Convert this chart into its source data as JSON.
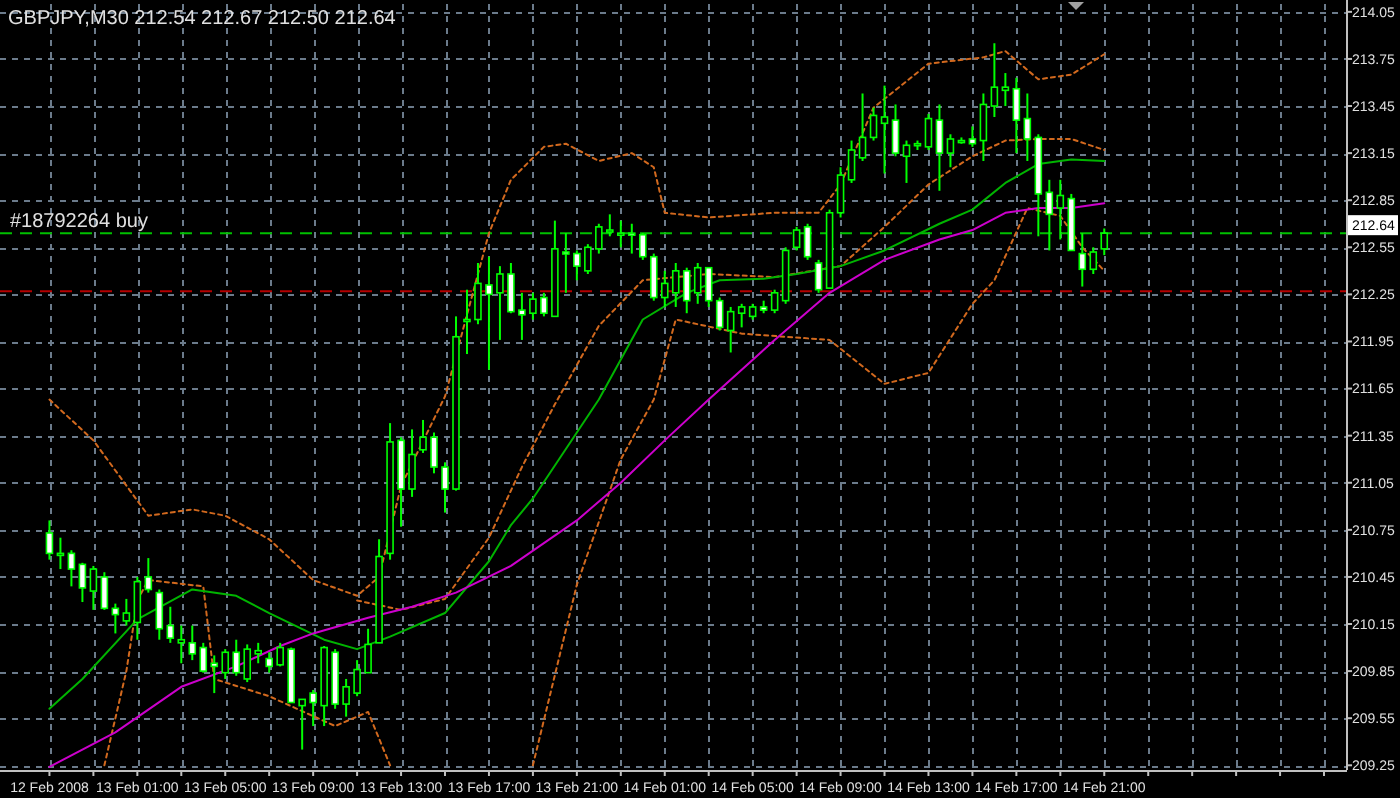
{
  "chart_data": {
    "type": "candlestick",
    "title": "GBPJPY,M30  212.54 212.67 212.50 212.64",
    "x": [
      "2008-02-12T21:00",
      "2008-02-12T21:30",
      "2008-02-12T22:00",
      "2008-02-12T22:30",
      "2008-02-12T23:00",
      "2008-02-12T23:30",
      "2008-02-13T00:00",
      "2008-02-13T00:30",
      "2008-02-13T01:00",
      "2008-02-13T01:30",
      "2008-02-13T02:00",
      "2008-02-13T02:30",
      "2008-02-13T03:00",
      "2008-02-13T03:30",
      "2008-02-13T04:00",
      "2008-02-13T04:30",
      "2008-02-13T05:00",
      "2008-02-13T05:30",
      "2008-02-13T06:00",
      "2008-02-13T06:30",
      "2008-02-13T07:00",
      "2008-02-13T07:30",
      "2008-02-13T08:00",
      "2008-02-13T08:30",
      "2008-02-13T09:00",
      "2008-02-13T09:30",
      "2008-02-13T10:00",
      "2008-02-13T10:30",
      "2008-02-13T11:00",
      "2008-02-13T11:30",
      "2008-02-13T12:00",
      "2008-02-13T12:30",
      "2008-02-13T13:00",
      "2008-02-13T13:30",
      "2008-02-13T14:00",
      "2008-02-13T14:30",
      "2008-02-13T15:00",
      "2008-02-13T15:30",
      "2008-02-13T16:00",
      "2008-02-13T16:30",
      "2008-02-13T17:00",
      "2008-02-13T17:30",
      "2008-02-13T18:00",
      "2008-02-13T18:30",
      "2008-02-13T19:00",
      "2008-02-13T19:30",
      "2008-02-13T20:00",
      "2008-02-13T20:30",
      "2008-02-13T21:00",
      "2008-02-13T21:30",
      "2008-02-13T22:00",
      "2008-02-13T22:30",
      "2008-02-13T23:00",
      "2008-02-13T23:30",
      "2008-02-14T00:00",
      "2008-02-14T00:30",
      "2008-02-14T01:00",
      "2008-02-14T01:30",
      "2008-02-14T02:00",
      "2008-02-14T02:30",
      "2008-02-14T03:00",
      "2008-02-14T03:30",
      "2008-02-14T04:00",
      "2008-02-14T04:30",
      "2008-02-14T05:00",
      "2008-02-14T05:30",
      "2008-02-14T06:00",
      "2008-02-14T06:30",
      "2008-02-14T07:00",
      "2008-02-14T07:30",
      "2008-02-14T08:00",
      "2008-02-14T08:30",
      "2008-02-14T09:00",
      "2008-02-14T09:30",
      "2008-02-14T10:00",
      "2008-02-14T10:30",
      "2008-02-14T11:00",
      "2008-02-14T11:30",
      "2008-02-14T12:00",
      "2008-02-14T12:30",
      "2008-02-14T13:00",
      "2008-02-14T13:30",
      "2008-02-14T14:00",
      "2008-02-14T14:30",
      "2008-02-14T15:00",
      "2008-02-14T15:30",
      "2008-02-14T16:00",
      "2008-02-14T16:30",
      "2008-02-14T17:00",
      "2008-02-14T17:30",
      "2008-02-14T18:00",
      "2008-02-14T18:30",
      "2008-02-14T19:00",
      "2008-02-14T19:30",
      "2008-02-14T20:00",
      "2008-02-14T20:30",
      "2008-02-14T21:00"
    ],
    "ohlc": [
      [
        210.73,
        210.81,
        210.56,
        210.6
      ],
      [
        210.6,
        210.7,
        210.5,
        210.6
      ],
      [
        210.6,
        210.62,
        210.39,
        210.5
      ],
      [
        210.53,
        210.54,
        210.29,
        210.38
      ],
      [
        210.36,
        210.52,
        210.24,
        210.5
      ],
      [
        210.45,
        210.48,
        210.24,
        210.25
      ],
      [
        210.25,
        210.28,
        210.09,
        210.21
      ],
      [
        210.17,
        210.31,
        210.14,
        210.22
      ],
      [
        210.16,
        210.45,
        210.05,
        210.42
      ],
      [
        210.45,
        210.57,
        210.35,
        210.37
      ],
      [
        210.35,
        210.37,
        210.05,
        210.12
      ],
      [
        210.14,
        210.26,
        210.03,
        210.06
      ],
      [
        210.03,
        210.14,
        209.9,
        210.05
      ],
      [
        210.03,
        210.14,
        209.92,
        209.96
      ],
      [
        210.0,
        210.03,
        209.84,
        209.85
      ],
      [
        209.9,
        209.95,
        209.71,
        209.88
      ],
      [
        209.84,
        209.99,
        209.8,
        209.97
      ],
      [
        209.97,
        210.05,
        209.82,
        209.84
      ],
      [
        209.8,
        210.02,
        209.78,
        209.99
      ],
      [
        209.96,
        210.03,
        209.9,
        209.98
      ],
      [
        209.93,
        209.97,
        209.84,
        209.88
      ],
      [
        209.89,
        210.03,
        209.88,
        210.0
      ],
      [
        209.99,
        210.0,
        209.65,
        209.65
      ],
      [
        209.63,
        209.67,
        209.35,
        209.67
      ],
      [
        209.71,
        209.73,
        209.5,
        209.65
      ],
      [
        209.63,
        210.01,
        209.5,
        210.0
      ],
      [
        209.97,
        209.99,
        209.61,
        209.64
      ],
      [
        209.64,
        209.8,
        209.56,
        209.75
      ],
      [
        209.71,
        209.92,
        209.69,
        209.86
      ],
      [
        209.84,
        210.12,
        209.84,
        210.02
      ],
      [
        210.03,
        210.69,
        210.03,
        210.58
      ],
      [
        210.6,
        211.43,
        210.56,
        211.31
      ],
      [
        211.32,
        211.34,
        210.77,
        211.01
      ],
      [
        211.01,
        211.39,
        210.96,
        211.23
      ],
      [
        211.26,
        211.45,
        211.24,
        211.34
      ],
      [
        211.34,
        211.37,
        211.11,
        211.15
      ],
      [
        211.15,
        211.18,
        210.86,
        211.01
      ],
      [
        211.01,
        212.11,
        211.0,
        211.98
      ],
      [
        212.08,
        212.28,
        211.87,
        212.09
      ],
      [
        212.09,
        212.45,
        212.06,
        212.32
      ],
      [
        212.31,
        212.49,
        211.77,
        212.25
      ],
      [
        212.26,
        212.43,
        211.96,
        212.38
      ],
      [
        212.38,
        212.45,
        212.13,
        212.14
      ],
      [
        212.15,
        212.26,
        211.96,
        212.12
      ],
      [
        212.13,
        212.26,
        212.09,
        212.22
      ],
      [
        212.23,
        212.26,
        212.11,
        212.13
      ],
      [
        212.11,
        212.72,
        212.11,
        212.54
      ],
      [
        212.52,
        212.64,
        212.26,
        212.51
      ],
      [
        212.51,
        212.53,
        212.34,
        212.43
      ],
      [
        212.4,
        212.57,
        212.38,
        212.55
      ],
      [
        212.54,
        212.7,
        212.51,
        212.68
      ],
      [
        212.66,
        212.76,
        212.62,
        212.66
      ],
      [
        212.64,
        212.72,
        212.55,
        212.64
      ],
      [
        212.64,
        212.7,
        212.51,
        212.63
      ],
      [
        212.63,
        212.64,
        212.47,
        212.49
      ],
      [
        212.49,
        212.51,
        212.21,
        212.23
      ],
      [
        212.23,
        212.4,
        212.17,
        212.32
      ],
      [
        212.26,
        212.45,
        212.17,
        212.4
      ],
      [
        212.4,
        212.42,
        212.13,
        212.21
      ],
      [
        212.26,
        212.45,
        212.19,
        212.42
      ],
      [
        212.42,
        212.42,
        212.17,
        212.21
      ],
      [
        212.21,
        212.23,
        212.02,
        212.04
      ],
      [
        212.02,
        212.17,
        211.88,
        212.14
      ],
      [
        212.13,
        212.19,
        212.04,
        212.17
      ],
      [
        212.11,
        212.19,
        212.09,
        212.17
      ],
      [
        212.17,
        212.21,
        212.13,
        212.15
      ],
      [
        212.15,
        212.28,
        212.13,
        212.26
      ],
      [
        212.21,
        212.55,
        212.19,
        212.53
      ],
      [
        212.55,
        212.68,
        212.53,
        212.66
      ],
      [
        212.68,
        212.7,
        212.47,
        212.49
      ],
      [
        212.45,
        212.47,
        212.26,
        212.28
      ],
      [
        212.29,
        212.79,
        212.29,
        212.77
      ],
      [
        212.77,
        213.06,
        212.74,
        213.01
      ],
      [
        212.98,
        213.23,
        212.96,
        213.17
      ],
      [
        213.12,
        213.53,
        213.1,
        213.25
      ],
      [
        213.25,
        213.44,
        213.23,
        213.39
      ],
      [
        213.34,
        213.58,
        213.02,
        213.38
      ],
      [
        213.36,
        213.46,
        213.13,
        213.15
      ],
      [
        213.13,
        213.23,
        212.96,
        213.2
      ],
      [
        213.2,
        213.23,
        213.17,
        213.21
      ],
      [
        213.19,
        213.4,
        213.17,
        213.37
      ],
      [
        213.36,
        213.46,
        212.91,
        213.15
      ],
      [
        213.15,
        213.27,
        213.06,
        213.24
      ],
      [
        213.23,
        213.25,
        213.21,
        213.23
      ],
      [
        213.24,
        213.32,
        213.19,
        213.21
      ],
      [
        213.23,
        213.53,
        213.1,
        213.46
      ],
      [
        213.45,
        213.85,
        213.38,
        213.57
      ],
      [
        213.55,
        213.66,
        213.45,
        213.57
      ],
      [
        213.56,
        213.63,
        213.15,
        213.36
      ],
      [
        213.37,
        213.53,
        213.1,
        213.24
      ],
      [
        213.25,
        213.27,
        212.62,
        212.89
      ],
      [
        212.9,
        212.98,
        212.53,
        212.76
      ],
      [
        212.8,
        212.98,
        212.6,
        212.88
      ],
      [
        212.86,
        212.89,
        212.53,
        212.53
      ],
      [
        212.51,
        212.64,
        212.3,
        212.41
      ],
      [
        212.41,
        212.55,
        212.38,
        212.52
      ],
      [
        212.54,
        212.67,
        212.5,
        212.64
      ]
    ],
    "series": [
      {
        "type": "line",
        "color": "#d2691e",
        "line_style": "dotted",
        "x": [
          "2008-02-12T21:00",
          "2008-02-12T23:00",
          "2008-02-13T01:30",
          "2008-02-13T03:30",
          "2008-02-13T05:00",
          "2008-02-13T07:00",
          "2008-02-13T09:00",
          "2008-02-13T11:00",
          "2008-02-13T12:00",
          "2008-02-13T13:00",
          "2008-02-13T15:00",
          "2008-02-13T17:00",
          "2008-02-13T18:00",
          "2008-02-13T19:30",
          "2008-02-13T20:30",
          "2008-02-13T22:00",
          "2008-02-13T23:30",
          "2008-02-14T00:30",
          "2008-02-14T01:00",
          "2008-02-14T03:00",
          "2008-02-14T06:00",
          "2008-02-14T08:00",
          "2008-02-14T09:00",
          "2008-02-14T10:30",
          "2008-02-14T13:00",
          "2008-02-14T15:30",
          "2008-02-14T16:30",
          "2008-02-14T18:00",
          "2008-02-14T19:30",
          "2008-02-14T21:00"
        ],
        "values": [
          211.58,
          211.32,
          210.84,
          210.88,
          210.84,
          210.69,
          210.43,
          210.33,
          210.45,
          211.03,
          211.6,
          212.64,
          212.98,
          213.19,
          213.21,
          213.1,
          213.15,
          213.06,
          212.77,
          212.74,
          212.77,
          212.77,
          212.95,
          213.44,
          213.72,
          213.76,
          213.8,
          213.62,
          213.65,
          213.78
        ]
      },
      {
        "type": "line",
        "color": "#d2691e",
        "line_style": "dotted",
        "x": [
          "2008-02-13T11:00",
          "2008-02-13T13:00",
          "2008-02-13T15:00",
          "2008-02-13T17:00",
          "2008-02-13T18:30",
          "2008-02-13T20:00",
          "2008-02-13T22:00",
          "2008-02-14T00:00",
          "2008-02-14T03:00",
          "2008-02-14T06:00",
          "2008-02-14T09:00",
          "2008-02-14T11:00",
          "2008-02-14T13:00",
          "2008-02-14T15:00",
          "2008-02-14T16:30",
          "2008-02-14T18:00",
          "2008-02-14T19:30",
          "2008-02-14T21:00"
        ],
        "values": [
          210.3,
          210.24,
          210.31,
          210.7,
          211.15,
          211.55,
          212.05,
          212.34,
          212.38,
          212.36,
          212.43,
          212.68,
          212.95,
          213.13,
          213.23,
          213.24,
          213.24,
          213.17
        ]
      },
      {
        "type": "line",
        "color": "#d2691e",
        "line_style": "dotted",
        "x": [
          "2008-02-12T23:30",
          "2008-02-13T00:30",
          "2008-02-13T01:00",
          "2008-02-13T01:30",
          "2008-02-13T04:00",
          "2008-02-13T04:30",
          "2008-02-13T07:00",
          "2008-02-13T10:00",
          "2008-02-13T11:30",
          "2008-02-13T12:30",
          "2008-02-13T16:00",
          "2008-02-13T19:00",
          "2008-02-13T21:00",
          "2008-02-13T23:00",
          "2008-02-14T00:30",
          "2008-02-14T01:30",
          "2008-02-14T04:30",
          "2008-02-14T08:30",
          "2008-02-14T11:00",
          "2008-02-14T13:00",
          "2008-02-14T15:00",
          "2008-02-14T16:00",
          "2008-02-14T17:30",
          "2008-02-14T19:00",
          "2008-02-14T20:00",
          "2008-02-14T21:00"
        ],
        "values": [
          209.25,
          209.85,
          210.3,
          210.43,
          210.39,
          209.8,
          209.69,
          209.5,
          209.59,
          209.25,
          null,
          209.25,
          210.4,
          211.2,
          211.58,
          212.09,
          212.0,
          211.96,
          211.68,
          211.75,
          212.19,
          212.34,
          212.8,
          212.75,
          212.55,
          212.4
        ]
      },
      {
        "type": "line",
        "color": "#00b400",
        "line_style": "solid",
        "x": [
          "2008-02-12T21:00",
          "2008-02-12T22:30",
          "2008-02-13T01:00",
          "2008-02-13T03:30",
          "2008-02-13T05:30",
          "2008-02-13T07:00",
          "2008-02-13T09:30",
          "2008-02-13T11:00",
          "2008-02-13T12:30",
          "2008-02-13T15:00",
          "2008-02-13T17:00",
          "2008-02-13T18:00",
          "2008-02-13T19:00",
          "2008-02-13T21:00",
          "2008-02-13T22:00",
          "2008-02-14T00:00",
          "2008-02-14T02:00",
          "2008-02-14T03:30",
          "2008-02-14T05:30",
          "2008-02-14T07:00",
          "2008-02-14T09:00",
          "2008-02-14T11:00",
          "2008-02-14T13:30",
          "2008-02-14T15:00",
          "2008-02-14T16:30",
          "2008-02-14T18:00",
          "2008-02-14T19:30",
          "2008-02-14T21:00"
        ],
        "values": [
          209.61,
          209.8,
          210.18,
          210.37,
          210.33,
          210.22,
          210.05,
          209.99,
          210.07,
          210.22,
          210.55,
          210.78,
          210.95,
          211.37,
          211.58,
          212.09,
          212.26,
          212.34,
          212.35,
          212.38,
          212.43,
          212.53,
          212.7,
          212.79,
          212.96,
          213.08,
          213.11,
          213.1
        ]
      },
      {
        "type": "line",
        "color": "#cc00cc",
        "line_style": "solid",
        "x": [
          "2008-02-12T21:00",
          "2008-02-13T00:00",
          "2008-02-13T03:00",
          "2008-02-13T05:30",
          "2008-02-13T07:30",
          "2008-02-13T09:00",
          "2008-02-13T11:30",
          "2008-02-13T13:30",
          "2008-02-13T15:30",
          "2008-02-13T18:00",
          "2008-02-13T21:00",
          "2008-02-13T23:00",
          "2008-02-14T01:00",
          "2008-02-14T03:00",
          "2008-02-14T06:00",
          "2008-02-14T08:30",
          "2008-02-14T11:00",
          "2008-02-14T13:30",
          "2008-02-14T15:00",
          "2008-02-14T16:30",
          "2008-02-14T18:00",
          "2008-02-14T19:30",
          "2008-02-14T21:00"
        ],
        "values": [
          209.24,
          209.46,
          209.75,
          209.88,
          210.01,
          210.09,
          210.19,
          210.26,
          210.35,
          210.52,
          210.81,
          211.05,
          211.32,
          211.58,
          211.96,
          212.26,
          212.47,
          212.6,
          212.66,
          212.77,
          212.8,
          212.8,
          212.83
        ]
      }
    ],
    "xlim": [
      "2008-02-12T18:45",
      "2008-02-15T08:00"
    ],
    "xticks": [
      {
        "value": "2008-02-12T21:00",
        "label": "12 Feb 2008"
      },
      {
        "value": "2008-02-12T23:00",
        "label": null
      },
      {
        "value": "2008-02-13T01:00",
        "label": "13 Feb 01:00"
      },
      {
        "value": "2008-02-13T03:00",
        "label": null
      },
      {
        "value": "2008-02-13T05:00",
        "label": "13 Feb 05:00"
      },
      {
        "value": "2008-02-13T07:00",
        "label": null
      },
      {
        "value": "2008-02-13T09:00",
        "label": "13 Feb 09:00"
      },
      {
        "value": "2008-02-13T11:00",
        "label": null
      },
      {
        "value": "2008-02-13T13:00",
        "label": "13 Feb 13:00"
      },
      {
        "value": "2008-02-13T15:00",
        "label": null
      },
      {
        "value": "2008-02-13T17:00",
        "label": "13 Feb 17:00"
      },
      {
        "value": "2008-02-13T19:00",
        "label": null
      },
      {
        "value": "2008-02-13T21:00",
        "label": "13 Feb 21:00"
      },
      {
        "value": "2008-02-13T23:00",
        "label": null
      },
      {
        "value": "2008-02-14T01:00",
        "label": "14 Feb 01:00"
      },
      {
        "value": "2008-02-14T03:00",
        "label": null
      },
      {
        "value": "2008-02-14T05:00",
        "label": "14 Feb 05:00"
      },
      {
        "value": "2008-02-14T07:00",
        "label": null
      },
      {
        "value": "2008-02-14T09:00",
        "label": "14 Feb 09:00"
      },
      {
        "value": "2008-02-14T11:00",
        "label": null
      },
      {
        "value": "2008-02-14T13:00",
        "label": "14 Feb 13:00"
      },
      {
        "value": "2008-02-14T15:00",
        "label": null
      },
      {
        "value": "2008-02-14T17:00",
        "label": "14 Feb 17:00"
      },
      {
        "value": "2008-02-14T19:00",
        "label": null
      },
      {
        "value": "2008-02-14T21:00",
        "label": "14 Feb 21:00"
      },
      {
        "value": "2008-02-14T23:00",
        "label": null
      },
      {
        "value": "2008-02-15T01:00",
        "label": null
      },
      {
        "value": "2008-02-15T03:00",
        "label": null
      },
      {
        "value": "2008-02-15T05:00",
        "label": null
      },
      {
        "value": "2008-02-15T07:00",
        "label": null
      }
    ],
    "ylim": [
      209.22,
      214.1
    ],
    "yticks": [
      214.05,
      213.75,
      213.45,
      213.15,
      212.85,
      212.55,
      212.25,
      211.95,
      211.65,
      211.35,
      211.05,
      210.75,
      210.45,
      210.15,
      209.85,
      209.55,
      209.25
    ],
    "grid": true,
    "ref_lines": [
      {
        "axis": "y",
        "value": 212.64,
        "label": "#18792264 buy",
        "color": "#00c000",
        "line_style": "dashed"
      },
      {
        "axis": "y",
        "value": 212.27,
        "color": "#b40000",
        "line_style": "dashed"
      }
    ],
    "annotations": [
      "212.64"
    ]
  }
}
